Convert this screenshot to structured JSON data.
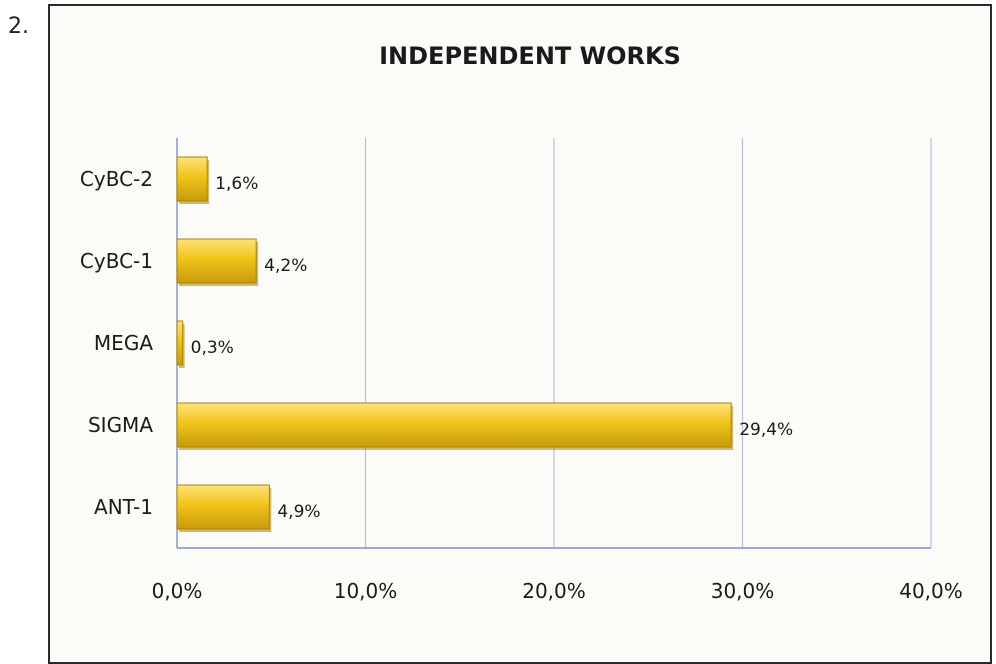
{
  "item_number": "2.",
  "chart_data": {
    "type": "bar",
    "orientation": "horizontal",
    "title": "INDEPENDENT WORKS",
    "xlabel": "",
    "ylabel": "",
    "categories": [
      "CyBC-2",
      "CyBC-1",
      "MEGA",
      "SIGMA",
      "ANT-1"
    ],
    "values": [
      1.6,
      4.2,
      0.3,
      29.4,
      4.9
    ],
    "value_labels": [
      "1,6%",
      "4,2%",
      "0,3%",
      "29,4%",
      "4,9%"
    ],
    "xlim": [
      0,
      40
    ],
    "x_ticks": [
      0,
      10,
      20,
      30,
      40
    ],
    "x_tick_labels": [
      "0,0%",
      "10,0%",
      "20,0%",
      "30,0%",
      "40,0%"
    ],
    "grid": "vertical",
    "legend": "none",
    "colors": {
      "bar": "#f0c419",
      "bar_highlight": "#ffe27a",
      "bar_shadow": "#a9860a",
      "grid": "#b7bfdc",
      "axis": "#7f8fc4"
    }
  }
}
